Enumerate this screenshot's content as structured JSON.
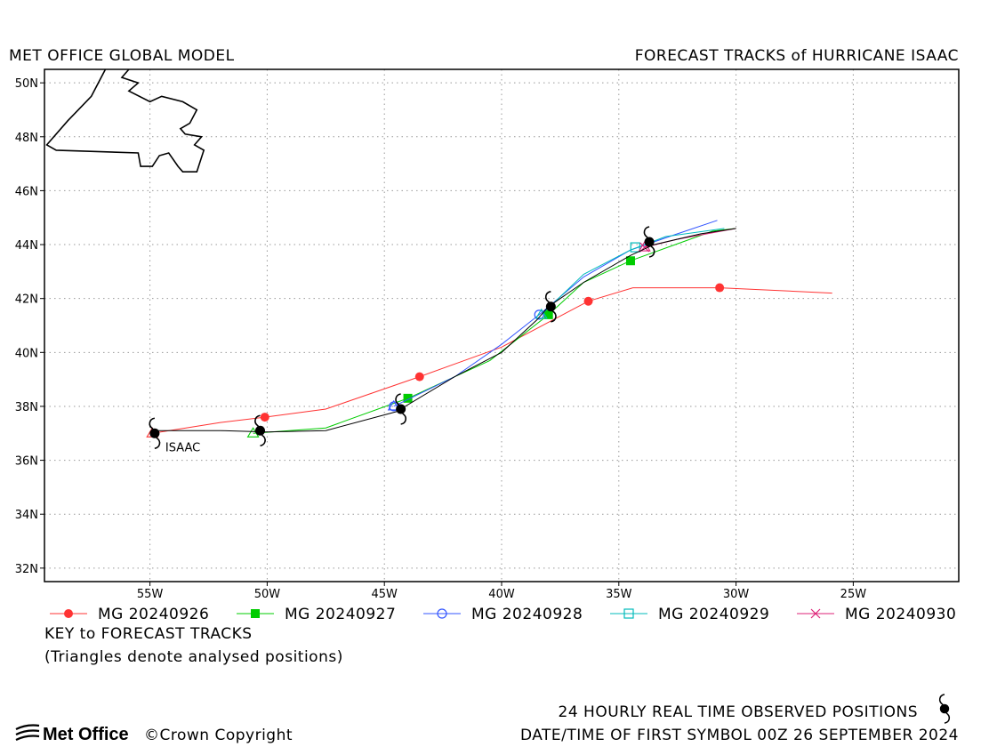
{
  "header": {
    "left_title": "MET OFFICE GLOBAL MODEL",
    "right_title": "FORECAST TRACKS of HURRICANE ISAAC"
  },
  "axes": {
    "lon_range": [
      -59.5,
      -20.5
    ],
    "lat_range": [
      31.5,
      50.5
    ],
    "lon_ticks": [
      {
        "value": -55,
        "label": "55W"
      },
      {
        "value": -50,
        "label": "50W"
      },
      {
        "value": -45,
        "label": "45W"
      },
      {
        "value": -40,
        "label": "40W"
      },
      {
        "value": -35,
        "label": "35W"
      },
      {
        "value": -30,
        "label": "30W"
      },
      {
        "value": -25,
        "label": "25W"
      }
    ],
    "lat_ticks": [
      {
        "value": 50,
        "label": "50N"
      },
      {
        "value": 48,
        "label": "48N"
      },
      {
        "value": 46,
        "label": "46N"
      },
      {
        "value": 44,
        "label": "44N"
      },
      {
        "value": 42,
        "label": "42N"
      },
      {
        "value": 40,
        "label": "40N"
      },
      {
        "value": 38,
        "label": "38N"
      },
      {
        "value": 36,
        "label": "36N"
      },
      {
        "value": 34,
        "label": "34N"
      },
      {
        "value": 32,
        "label": "32N"
      }
    ],
    "grid": "dotted"
  },
  "chart_data": {
    "type": "line",
    "storm_label": "ISAAC",
    "coastline": [
      [
        [
          -56.9,
          50.5
        ],
        [
          -57.5,
          49.5
        ],
        [
          -58.5,
          48.6
        ],
        [
          -59.4,
          47.7
        ],
        [
          -59.0,
          47.5
        ],
        [
          -55.5,
          47.4
        ],
        [
          -55.4,
          46.9
        ],
        [
          -54.9,
          46.9
        ],
        [
          -54.6,
          47.3
        ],
        [
          -54.2,
          47.4
        ],
        [
          -53.8,
          46.9
        ],
        [
          -53.6,
          46.7
        ],
        [
          -53.0,
          46.7
        ],
        [
          -52.7,
          47.5
        ],
        [
          -53.1,
          47.7
        ],
        [
          -52.8,
          48.0
        ],
        [
          -53.5,
          48.1
        ],
        [
          -53.7,
          48.3
        ],
        [
          -53.3,
          48.5
        ],
        [
          -53.0,
          49.0
        ],
        [
          -53.6,
          49.3
        ],
        [
          -54.5,
          49.5
        ],
        [
          -55.0,
          49.3
        ],
        [
          -55.9,
          49.7
        ],
        [
          -55.5,
          50.0
        ],
        [
          -56.2,
          50.2
        ],
        [
          -55.9,
          50.5
        ]
      ]
    ],
    "observed": {
      "name": "24 HOURLY REAL TIME OBSERVED POSITIONS",
      "color": "#000000",
      "track": [
        [
          -54.9,
          37.1
        ],
        [
          -52.0,
          37.1
        ],
        [
          -50.0,
          37.05
        ],
        [
          -47.5,
          37.1
        ],
        [
          -44.5,
          37.8
        ],
        [
          -42.0,
          39.1
        ],
        [
          -40.0,
          40.0
        ],
        [
          -38.5,
          41.2
        ],
        [
          -38.0,
          41.7
        ],
        [
          -36.5,
          42.6
        ],
        [
          -34.5,
          43.6
        ],
        [
          -33.5,
          44.0
        ],
        [
          -31.5,
          44.4
        ],
        [
          -30.0,
          44.6
        ]
      ],
      "symbols": [
        [
          -54.8,
          37.0
        ],
        [
          -50.3,
          37.1
        ],
        [
          -44.3,
          37.9
        ],
        [
          -37.9,
          41.7
        ],
        [
          -33.7,
          44.1
        ]
      ]
    },
    "series": [
      {
        "name": "MG 20240926",
        "color": "#ff3333",
        "marker": "filled-circle",
        "track": [
          [
            -54.9,
            37.0
          ],
          [
            -52.0,
            37.4
          ],
          [
            -50.1,
            37.6
          ],
          [
            -47.5,
            37.9
          ],
          [
            -43.5,
            39.1
          ],
          [
            -40.0,
            40.2
          ],
          [
            -36.3,
            41.9
          ],
          [
            -34.4,
            42.4
          ],
          [
            -30.7,
            42.4
          ],
          [
            -25.9,
            42.2
          ]
        ],
        "markers": [
          [
            -50.1,
            37.6
          ],
          [
            -43.5,
            39.1
          ],
          [
            -36.3,
            41.9
          ],
          [
            -30.7,
            42.4
          ]
        ]
      },
      {
        "name": "MG 20240927",
        "color": "#00cc00",
        "marker": "filled-square",
        "track": [
          [
            -50.6,
            37.0
          ],
          [
            -47.5,
            37.2
          ],
          [
            -44.0,
            38.3
          ],
          [
            -40.5,
            39.7
          ],
          [
            -38.0,
            41.4
          ],
          [
            -36.5,
            42.6
          ],
          [
            -34.5,
            43.4
          ],
          [
            -31.0,
            44.5
          ],
          [
            -30.0,
            44.6
          ]
        ],
        "markers": [
          [
            -44.0,
            38.3
          ],
          [
            -38.0,
            41.4
          ],
          [
            -34.5,
            43.4
          ]
        ]
      },
      {
        "name": "MG 20240928",
        "color": "#3355ff",
        "marker": "open-circle",
        "track": [
          [
            -44.6,
            38.0
          ],
          [
            -42.0,
            39.1
          ],
          [
            -40.0,
            40.3
          ],
          [
            -38.4,
            41.4
          ],
          [
            -36.5,
            42.8
          ],
          [
            -34.5,
            43.8
          ],
          [
            -32.5,
            44.4
          ],
          [
            -30.8,
            44.9
          ]
        ],
        "markers": [
          [
            -44.6,
            38.0
          ],
          [
            -38.4,
            41.4
          ]
        ]
      },
      {
        "name": "MG 20240929",
        "color": "#00bbbb",
        "marker": "open-square",
        "track": [
          [
            -38.3,
            41.4
          ],
          [
            -36.5,
            42.9
          ],
          [
            -34.5,
            43.8
          ],
          [
            -33.0,
            44.3
          ],
          [
            -30.5,
            44.6
          ]
        ],
        "markers": [
          [
            -34.3,
            43.9
          ]
        ]
      },
      {
        "name": "MG 20240930",
        "color": "#dd2277",
        "marker": "cross",
        "track": [
          [
            -33.9,
            43.9
          ],
          [
            -32.5,
            44.2
          ],
          [
            -30.0,
            44.6
          ]
        ],
        "markers": [
          [
            -33.9,
            43.9
          ]
        ]
      }
    ]
  },
  "legend": {
    "key_title": "KEY to FORECAST TRACKS",
    "key_note": "(Triangles denote analysed positions)"
  },
  "footer": {
    "logo_text": "Met Office",
    "copyright": "©Crown Copyright",
    "observed_label": "24 HOURLY REAL TIME OBSERVED POSITIONS",
    "first_symbol": "DATE/TIME OF FIRST SYMBOL 00Z 26 SEPTEMBER 2024"
  }
}
